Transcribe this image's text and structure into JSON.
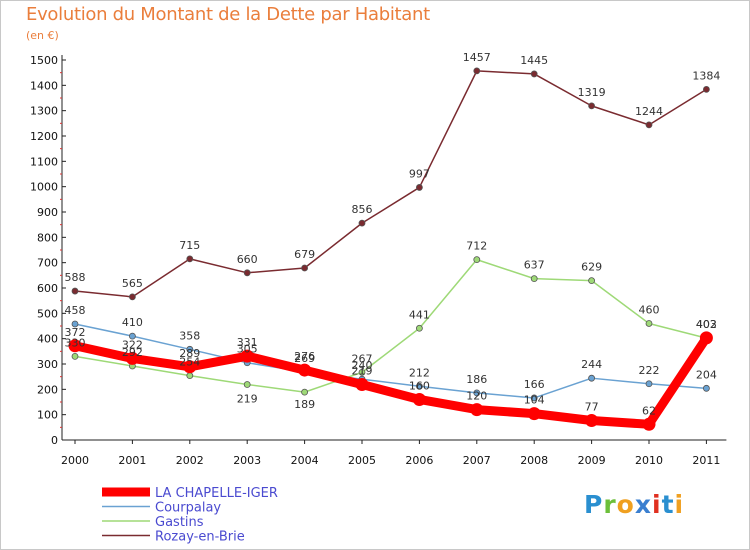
{
  "title": "Evolution du Montant de la Dette par Habitant",
  "unit_label": "(en €)",
  "logo": {
    "letters": [
      "P",
      "r",
      "o",
      "x",
      "i",
      "t",
      "i"
    ],
    "colors": [
      "#2a8fd0",
      "#6cbf3a",
      "#f0a020",
      "#3a7fd0",
      "#e03020",
      "#2a8fd0",
      "#f0a020"
    ]
  },
  "chart_data": {
    "type": "line",
    "title": "Evolution du Montant de la Dette par Habitant",
    "ylabel": "(en €)",
    "xlabel": "",
    "x": [
      "2000",
      "2001",
      "2002",
      "2003",
      "2004",
      "2005",
      "2006",
      "2007",
      "2008",
      "2009",
      "2010",
      "2011"
    ],
    "ylim": [
      0,
      1500
    ],
    "yticks": [
      0,
      100,
      200,
      300,
      400,
      500,
      600,
      700,
      800,
      900,
      1000,
      1100,
      1200,
      1300,
      1400,
      1500
    ],
    "grid": false,
    "legend_position": "bottom-left",
    "series": [
      {
        "name": "LA CHAPELLE-IGER",
        "color": "#ff0000",
        "values": [
          372,
          322,
          289,
          331,
          276,
          219,
          160,
          120,
          104,
          77,
          62,
          403
        ]
      },
      {
        "name": "Courpalay",
        "color": "#6aa2d2",
        "values": [
          458,
          410,
          358,
          305,
          269,
          240,
          212,
          186,
          166,
          244,
          222,
          204
        ]
      },
      {
        "name": "Gastins",
        "color": "#9ed977",
        "values": [
          330,
          292,
          254,
          219,
          189,
          267,
          441,
          712,
          637,
          629,
          460,
          402
        ]
      },
      {
        "name": "Rozay-en-Brie",
        "color": "#7a2b30",
        "values": [
          588,
          565,
          715,
          660,
          679,
          856,
          997,
          1457,
          1445,
          1319,
          1244,
          1384
        ]
      }
    ]
  }
}
